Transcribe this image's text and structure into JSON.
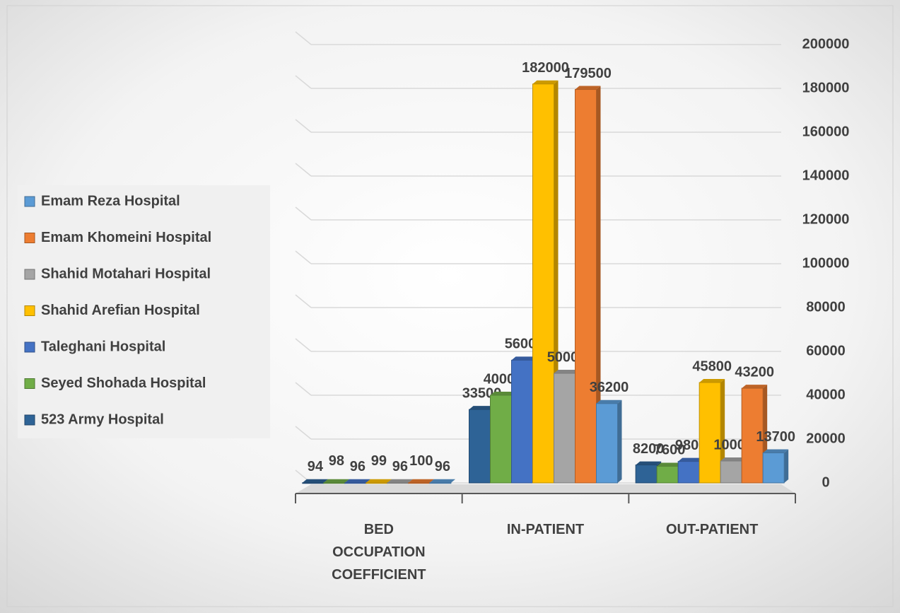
{
  "chart_data": {
    "type": "bar3d",
    "categories": [
      "BED OCCUPATION COEFFICIENT",
      "IN-PATIENT",
      "OUT-PATIENT"
    ],
    "series": [
      {
        "name": "523 Army Hospital",
        "color": "#2e6396",
        "values": [
          94,
          33500,
          8200
        ]
      },
      {
        "name": "Seyed Shohada Hospital",
        "color": "#70ad47",
        "values": [
          98,
          40000,
          7600
        ]
      },
      {
        "name": "Taleghani Hospital",
        "color": "#4472c4",
        "values": [
          96,
          56000,
          9800
        ]
      },
      {
        "name": "Shahid Arefian Hospital",
        "color": "#ffc000",
        "values": [
          99,
          182000,
          45800
        ]
      },
      {
        "name": "Shahid Motahari Hospital",
        "color": "#a5a5a5",
        "values": [
          96,
          50000,
          10000
        ]
      },
      {
        "name": "Emam Khomeini Hospital",
        "color": "#ed7d31",
        "values": [
          100,
          179500,
          43200
        ]
      },
      {
        "name": "Emam Reza Hospital",
        "color": "#5b9bd5",
        "values": [
          96,
          36200,
          13700
        ]
      }
    ],
    "ylim": [
      0,
      200000
    ],
    "yticks": [
      0,
      20000,
      40000,
      60000,
      80000,
      100000,
      120000,
      140000,
      160000,
      180000,
      200000
    ],
    "grid": true,
    "legend": "left"
  }
}
